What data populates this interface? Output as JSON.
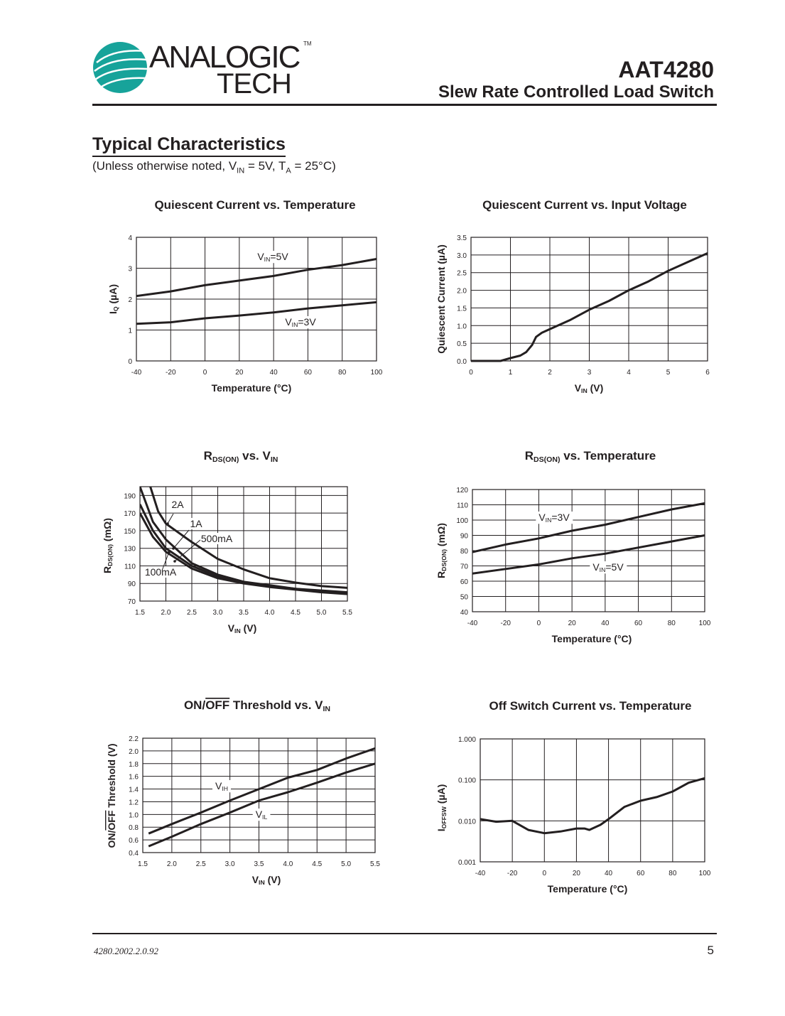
{
  "header": {
    "logo_line1": "ANALOGIC",
    "logo_line2": "TECH",
    "logo_tm": "TM",
    "part_number": "AAT4280",
    "subtitle": "Slew Rate Controlled Load Switch",
    "brand_color": "#17a39a"
  },
  "section": {
    "title": "Typical Characteristics",
    "conditions_pre": "(Unless otherwise noted, V",
    "conditions_sub1": "IN",
    "conditions_mid": " = 5V, T",
    "conditions_sub2": "A",
    "conditions_post": " = 25°C)"
  },
  "footer": {
    "doc_number": "4280.2002.2.0.92",
    "page": "5"
  },
  "chart_data": [
    {
      "type": "line",
      "title": [
        {
          "t": "Quiescent Current vs. Temperature"
        }
      ],
      "xlabel": [
        {
          "t": "Temperature (°C)"
        }
      ],
      "ylabel": [
        {
          "t": "I"
        },
        {
          "t": "Q",
          "sub": true
        },
        {
          "t": " (µA)"
        }
      ],
      "xlim": [
        -40,
        100
      ],
      "ylim": [
        0,
        4
      ],
      "xticks": [
        "-40",
        "-20",
        "0",
        "20",
        "40",
        "60",
        "80",
        "100"
      ],
      "yticks": [
        "0",
        "1",
        "2",
        "3",
        "4"
      ],
      "grid": true,
      "series": [
        {
          "name": [
            {
              "t": "V"
            },
            {
              "t": "IN",
              "sub": true
            },
            {
              "t": "=5V"
            }
          ],
          "x": [
            -40,
            -20,
            0,
            20,
            40,
            60,
            80,
            100
          ],
          "y": [
            2.1,
            2.25,
            2.45,
            2.6,
            2.75,
            2.95,
            3.1,
            3.3
          ]
        },
        {
          "name": [
            {
              "t": "V"
            },
            {
              "t": "IN",
              "sub": true
            },
            {
              "t": "=3V"
            }
          ],
          "x": [
            -40,
            -20,
            0,
            20,
            40,
            60,
            80,
            100
          ],
          "y": [
            1.2,
            1.25,
            1.38,
            1.47,
            1.57,
            1.7,
            1.8,
            1.9
          ]
        }
      ]
    },
    {
      "type": "line",
      "title": [
        {
          "t": "Quiescent Current vs. Input Voltage"
        }
      ],
      "xlabel": [
        {
          "t": "V"
        },
        {
          "t": "IN",
          "sub": true
        },
        {
          "t": " (V)"
        }
      ],
      "ylabel": [
        {
          "t": "Quiescent Current (µA)"
        }
      ],
      "xlim": [
        0,
        6
      ],
      "ylim": [
        0,
        3.5
      ],
      "xticks": [
        "0",
        "1",
        "2",
        "3",
        "4",
        "5",
        "6"
      ],
      "yticks": [
        "0.0",
        "0.5",
        "1.0",
        "1.5",
        "2.0",
        "2.5",
        "3.0",
        "3.5"
      ],
      "grid": true,
      "series": [
        {
          "x": [
            0,
            0.75,
            1,
            1.25,
            1.4,
            1.55,
            1.65,
            1.8,
            2,
            2.5,
            3,
            3.5,
            4,
            4.5,
            5,
            5.5,
            6
          ],
          "y": [
            0,
            0,
            0.08,
            0.15,
            0.25,
            0.45,
            0.68,
            0.8,
            0.9,
            1.15,
            1.45,
            1.7,
            2.0,
            2.25,
            2.55,
            2.8,
            3.05
          ]
        }
      ]
    },
    {
      "type": "line",
      "title": [
        {
          "t": "R"
        },
        {
          "t": "DS(ON)",
          "sub": true
        },
        {
          "t": " vs. V"
        },
        {
          "t": "IN",
          "sub": true
        }
      ],
      "xlabel": [
        {
          "t": "V"
        },
        {
          "t": "IN",
          "sub": true
        },
        {
          "t": "  (V)"
        }
      ],
      "ylabel": [
        {
          "t": "R"
        },
        {
          "t": "DS(ON)",
          "sub": true
        },
        {
          "t": " (mΩ)"
        }
      ],
      "xlim": [
        1.5,
        5.5
      ],
      "ylim": [
        70,
        200
      ],
      "xticks": [
        "1.5",
        "2.0",
        "2.5",
        "3.0",
        "3.5",
        "4.0",
        "4.5",
        "5.0",
        "5.5"
      ],
      "yticks": [
        "70",
        "90",
        "110",
        "130",
        "150",
        "170",
        "190"
      ],
      "ytick_values": [
        70,
        90,
        110,
        130,
        150,
        170,
        190
      ],
      "grid": true,
      "series": [
        {
          "name": [
            {
              "t": "2A"
            }
          ],
          "x": [
            1.7,
            1.85,
            2.0,
            2.5,
            3.0,
            3.5,
            4.0,
            4.5,
            5.0,
            5.5
          ],
          "y": [
            200,
            172,
            158,
            137,
            118,
            106,
            96,
            91,
            87,
            85
          ]
        },
        {
          "name": [
            {
              "t": "1A"
            }
          ],
          "x": [
            1.5,
            1.75,
            2.0,
            2.5,
            3.0,
            3.5,
            4.0,
            4.5,
            5.0,
            5.5
          ],
          "y": [
            200,
            160,
            140,
            113,
            100,
            92,
            88,
            84,
            82,
            80
          ]
        },
        {
          "name": [
            {
              "t": "500mA"
            }
          ],
          "x": [
            1.5,
            1.75,
            2.0,
            2.5,
            3.0,
            3.5,
            4.0,
            4.5,
            5.0,
            5.5
          ],
          "y": [
            180,
            150,
            130,
            110,
            98,
            91,
            87,
            84,
            81,
            79
          ]
        },
        {
          "name": [
            {
              "t": "100mA"
            }
          ],
          "x": [
            1.5,
            1.75,
            2.0,
            2.5,
            3.0,
            3.5,
            4.0,
            4.5,
            5.0,
            5.5
          ],
          "y": [
            170,
            143,
            126,
            107,
            96,
            90,
            86,
            83,
            80,
            78
          ]
        }
      ]
    },
    {
      "type": "line",
      "title": [
        {
          "t": "R"
        },
        {
          "t": "DS(ON)",
          "sub": true
        },
        {
          "t": " vs. Temperature"
        }
      ],
      "xlabel": [
        {
          "t": "Temperature (°C)"
        }
      ],
      "ylabel": [
        {
          "t": "R"
        },
        {
          "t": "DS(ON)",
          "sub": true
        },
        {
          "t": " (mΩ)"
        }
      ],
      "xlim": [
        -40,
        100
      ],
      "ylim": [
        40,
        120
      ],
      "xticks": [
        "-40",
        "-20",
        "0",
        "20",
        "40",
        "60",
        "80",
        "100"
      ],
      "yticks": [
        "40",
        "50",
        "60",
        "70",
        "80",
        "90",
        "100",
        "110",
        "120"
      ],
      "grid": true,
      "series": [
        {
          "name": [
            {
              "t": "V"
            },
            {
              "t": "IN",
              "sub": true
            },
            {
              "t": "=3V"
            }
          ],
          "x": [
            -40,
            -20,
            0,
            20,
            40,
            60,
            80,
            100
          ],
          "y": [
            79,
            84,
            88,
            93,
            97,
            102,
            107,
            111
          ]
        },
        {
          "name": [
            {
              "t": "V"
            },
            {
              "t": "IN",
              "sub": true
            },
            {
              "t": "=5V"
            }
          ],
          "x": [
            -40,
            -20,
            0,
            20,
            40,
            60,
            80,
            100
          ],
          "y": [
            65,
            68,
            71,
            75,
            78,
            82,
            86,
            90
          ]
        }
      ]
    },
    {
      "type": "line",
      "title": [
        {
          "t": "ON/"
        },
        {
          "t": "OFF",
          "over": true
        },
        {
          "t": " Threshold vs. V"
        },
        {
          "t": "IN",
          "sub": true
        }
      ],
      "xlabel": [
        {
          "t": "V"
        },
        {
          "t": "IN",
          "sub": true
        },
        {
          "t": " (V)"
        }
      ],
      "ylabel": [
        {
          "t": "ON/"
        },
        {
          "t": "OFF",
          "over": true
        },
        {
          "t": " Threshold (V)"
        }
      ],
      "xlim": [
        1.5,
        5.5
      ],
      "ylim": [
        0.4,
        2.2
      ],
      "xticks": [
        "1.5",
        "2.0",
        "2.5",
        "3.0",
        "3.5",
        "4.0",
        "4.5",
        "5.0",
        "5.5"
      ],
      "yticks": [
        "0.4",
        "0.6",
        "0.8",
        "1.0",
        "1.2",
        "1.4",
        "1.6",
        "1.8",
        "2.0",
        "2.2"
      ],
      "grid": true,
      "series": [
        {
          "name": [
            {
              "t": "V"
            },
            {
              "t": "IH",
              "sub": true
            }
          ],
          "x": [
            1.6,
            2,
            2.5,
            3,
            3.5,
            4,
            4.5,
            5,
            5.5
          ],
          "y": [
            0.7,
            0.85,
            1.03,
            1.22,
            1.4,
            1.58,
            1.7,
            1.88,
            2.04
          ]
        },
        {
          "name": [
            {
              "t": "V"
            },
            {
              "t": "IL",
              "sub": true
            }
          ],
          "x": [
            1.6,
            2,
            2.5,
            3,
            3.5,
            4,
            4.5,
            5,
            5.5
          ],
          "y": [
            0.5,
            0.65,
            0.85,
            1.03,
            1.22,
            1.35,
            1.5,
            1.66,
            1.8
          ]
        }
      ]
    },
    {
      "type": "line",
      "title": [
        {
          "t": "Off Switch Current vs. Temperature"
        }
      ],
      "xlabel": [
        {
          "t": "Temperature (°C)"
        }
      ],
      "ylabel": [
        {
          "t": "I"
        },
        {
          "t": "OFFSW",
          "sub": true
        },
        {
          "t": " (µA)"
        }
      ],
      "xlim": [
        -40,
        100
      ],
      "ylim": [
        0.001,
        1
      ],
      "yscale": "log",
      "xticks": [
        "-40",
        "-20",
        "0",
        "20",
        "40",
        "60",
        "80",
        "100"
      ],
      "yticks": [
        "0.001",
        "0.010",
        "0.100",
        "1.000"
      ],
      "grid": true,
      "series": [
        {
          "x": [
            -40,
            -30,
            -20,
            -10,
            0,
            10,
            20,
            25,
            28,
            35,
            40,
            50,
            60,
            70,
            80,
            90,
            100
          ],
          "y": [
            0.011,
            0.0095,
            0.01,
            0.006,
            0.005,
            0.0055,
            0.0065,
            0.0065,
            0.006,
            0.008,
            0.011,
            0.022,
            0.031,
            0.038,
            0.052,
            0.085,
            0.11
          ]
        }
      ]
    }
  ]
}
